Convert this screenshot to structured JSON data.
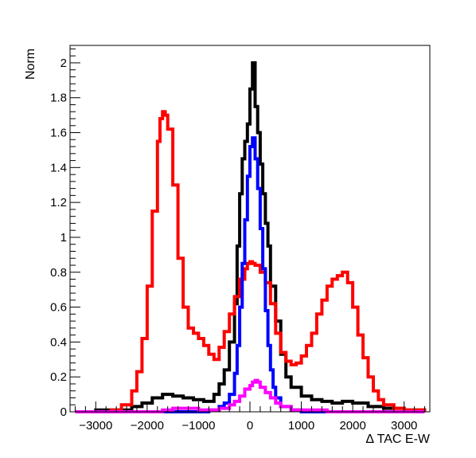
{
  "chart_data": {
    "type": "line",
    "xlabel": "Δ TAC E-W",
    "ylabel": "Norm",
    "xlim": [
      -3500,
      3500
    ],
    "ylim": [
      0,
      2.1
    ],
    "x_ticks": [
      -3000,
      -2000,
      -1000,
      0,
      1000,
      2000,
      3000
    ],
    "x_tick_labels": [
      "−3000",
      "−2000",
      "−1000",
      "0",
      "1000",
      "2000",
      "3000"
    ],
    "y_ticks": [
      0,
      0.2,
      0.4,
      0.6,
      0.8,
      1,
      1.2,
      1.4,
      1.6,
      1.8,
      2
    ],
    "y_tick_labels": [
      "0",
      "0.2",
      "0.4",
      "0.6",
      "0.8",
      "1",
      "1.2",
      "1.4",
      "1.6",
      "1.8",
      "2"
    ],
    "grid": false,
    "series": [
      {
        "color": "#000000",
        "x": [
          -3400,
          -3000,
          -2600,
          -2300,
          -2100,
          -1900,
          -1700,
          -1500,
          -1300,
          -1100,
          -900,
          -700,
          -600,
          -500,
          -400,
          -300,
          -250,
          -200,
          -150,
          -100,
          -50,
          0,
          50,
          100,
          150,
          200,
          250,
          300,
          350,
          400,
          500,
          600,
          700,
          800,
          1000,
          1200,
          1400,
          1600,
          1800,
          2000,
          2300,
          2600,
          3000,
          3400
        ],
        "y": [
          0.0,
          0.01,
          0.01,
          0.03,
          0.05,
          0.08,
          0.1,
          0.09,
          0.08,
          0.07,
          0.06,
          0.1,
          0.16,
          0.24,
          0.4,
          0.62,
          0.95,
          1.25,
          1.45,
          1.55,
          1.65,
          1.85,
          2.0,
          1.75,
          1.6,
          1.42,
          1.25,
          1.08,
          0.95,
          0.72,
          0.52,
          0.33,
          0.2,
          0.14,
          0.09,
          0.07,
          0.06,
          0.05,
          0.06,
          0.05,
          0.03,
          0.02,
          0.01,
          0.0
        ]
      },
      {
        "color": "#ff0000",
        "x": [
          -3400,
          -3000,
          -2700,
          -2500,
          -2300,
          -2200,
          -2100,
          -2000,
          -1900,
          -1800,
          -1750,
          -1700,
          -1650,
          -1600,
          -1500,
          -1400,
          -1300,
          -1200,
          -1100,
          -1000,
          -900,
          -800,
          -700,
          -600,
          -500,
          -400,
          -300,
          -200,
          -100,
          -50,
          0,
          50,
          100,
          200,
          300,
          400,
          500,
          600,
          700,
          800,
          900,
          1000,
          1100,
          1200,
          1300,
          1400,
          1500,
          1600,
          1700,
          1800,
          1900,
          2000,
          2100,
          2200,
          2300,
          2400,
          2500,
          2600,
          2800,
          3000,
          3400
        ],
        "y": [
          0.0,
          0.0,
          0.01,
          0.04,
          0.12,
          0.23,
          0.42,
          0.72,
          1.15,
          1.55,
          1.68,
          1.72,
          1.7,
          1.62,
          1.3,
          0.88,
          0.6,
          0.48,
          0.45,
          0.42,
          0.38,
          0.33,
          0.3,
          0.37,
          0.46,
          0.56,
          0.66,
          0.76,
          0.82,
          0.85,
          0.86,
          0.85,
          0.84,
          0.8,
          0.74,
          0.62,
          0.45,
          0.34,
          0.29,
          0.27,
          0.28,
          0.32,
          0.38,
          0.45,
          0.56,
          0.64,
          0.72,
          0.76,
          0.78,
          0.8,
          0.74,
          0.6,
          0.44,
          0.31,
          0.2,
          0.12,
          0.07,
          0.04,
          0.02,
          0.01,
          0.0
        ]
      },
      {
        "color": "#0000ff",
        "x": [
          -3400,
          -1000,
          -800,
          -600,
          -500,
          -400,
          -300,
          -250,
          -200,
          -150,
          -100,
          -50,
          0,
          50,
          100,
          150,
          200,
          250,
          300,
          350,
          400,
          450,
          500,
          600,
          800,
          1000,
          3400
        ],
        "y": [
          0.0,
          0.0,
          0.01,
          0.03,
          0.05,
          0.1,
          0.22,
          0.38,
          0.6,
          0.85,
          1.1,
          1.35,
          1.52,
          1.57,
          1.45,
          1.28,
          1.05,
          0.82,
          0.58,
          0.38,
          0.24,
          0.14,
          0.08,
          0.03,
          0.01,
          0.0,
          0.0
        ]
      },
      {
        "color": "#ff00ff",
        "x": [
          -3400,
          -2000,
          -1700,
          -1500,
          -1200,
          -1000,
          -800,
          -600,
          -400,
          -300,
          -200,
          -100,
          0,
          50,
          100,
          150,
          200,
          300,
          400,
          500,
          600,
          800,
          1000,
          1500,
          3400
        ],
        "y": [
          0.0,
          0.0,
          0.01,
          0.02,
          0.02,
          0.01,
          0.01,
          0.02,
          0.04,
          0.06,
          0.09,
          0.13,
          0.15,
          0.17,
          0.18,
          0.17,
          0.14,
          0.11,
          0.08,
          0.05,
          0.03,
          0.01,
          0.01,
          0.0,
          0.0
        ]
      }
    ]
  }
}
